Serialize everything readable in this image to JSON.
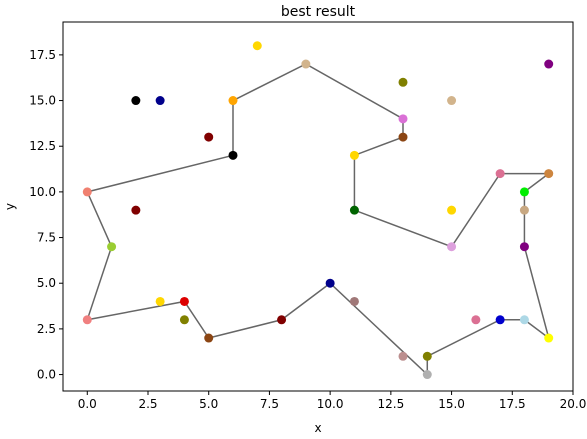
{
  "chart_data": {
    "type": "scatter",
    "title": "best result",
    "xlabel": "x",
    "ylabel": "y",
    "xlim": [
      -1,
      20
    ],
    "ylim": [
      -0.9,
      19.3
    ],
    "xticks": [
      0,
      2.5,
      5,
      7.5,
      10,
      12.5,
      15,
      17.5,
      20
    ],
    "xtick_labels": [
      "0.0",
      "2.5",
      "5.0",
      "7.5",
      "10.0",
      "12.5",
      "15.0",
      "17.5",
      "20.0"
    ],
    "yticks": [
      0,
      2.5,
      5,
      7.5,
      10,
      12.5,
      15,
      17.5
    ],
    "ytick_labels": [
      "0.0",
      "2.5",
      "5.0",
      "7.5",
      "10.0",
      "12.5",
      "15.0",
      "17.5"
    ],
    "grid": false,
    "path_color": "#666666",
    "route": [
      [
        0,
        10
      ],
      [
        6,
        12
      ],
      [
        6,
        15
      ],
      [
        9,
        17
      ],
      [
        13,
        14
      ],
      [
        13,
        13
      ],
      [
        11,
        12
      ],
      [
        11,
        9
      ],
      [
        15,
        7
      ],
      [
        17,
        11
      ],
      [
        19,
        11
      ],
      [
        18,
        10
      ],
      [
        18,
        7
      ],
      [
        19,
        2
      ],
      [
        18,
        3
      ],
      [
        17,
        3
      ],
      [
        14,
        1
      ],
      [
        14,
        0
      ],
      [
        10,
        5
      ],
      [
        8,
        3
      ],
      [
        5,
        2
      ],
      [
        4,
        4
      ],
      [
        0,
        3
      ],
      [
        1,
        7
      ],
      [
        0,
        10
      ]
    ],
    "points": [
      {
        "x": 0,
        "y": 10,
        "color": "#f08070"
      },
      {
        "x": 6,
        "y": 12,
        "color": "#000000"
      },
      {
        "x": 6,
        "y": 15,
        "color": "#ffa500"
      },
      {
        "x": 9,
        "y": 17,
        "color": "#d2b48c"
      },
      {
        "x": 13,
        "y": 14,
        "color": "#da70d6"
      },
      {
        "x": 13,
        "y": 13,
        "color": "#8b4513"
      },
      {
        "x": 11,
        "y": 12,
        "color": "#ffd700"
      },
      {
        "x": 11,
        "y": 9,
        "color": "#006400"
      },
      {
        "x": 15,
        "y": 7,
        "color": "#dda0dd"
      },
      {
        "x": 17,
        "y": 11,
        "color": "#db7093"
      },
      {
        "x": 19,
        "y": 11,
        "color": "#cd853f"
      },
      {
        "x": 18,
        "y": 10,
        "color": "#00ee00"
      },
      {
        "x": 18,
        "y": 7,
        "color": "#800080"
      },
      {
        "x": 19,
        "y": 2,
        "color": "#ffff00"
      },
      {
        "x": 18,
        "y": 3,
        "color": "#add8e6"
      },
      {
        "x": 17,
        "y": 3,
        "color": "#0000cd"
      },
      {
        "x": 14,
        "y": 1,
        "color": "#808000"
      },
      {
        "x": 14,
        "y": 0,
        "color": "#b0b0b0"
      },
      {
        "x": 10,
        "y": 5,
        "color": "#00008b"
      },
      {
        "x": 8,
        "y": 3,
        "color": "#800000"
      },
      {
        "x": 5,
        "y": 2,
        "color": "#8b4513"
      },
      {
        "x": 4,
        "y": 4,
        "color": "#dd0000"
      },
      {
        "x": 0,
        "y": 3,
        "color": "#f08080"
      },
      {
        "x": 1,
        "y": 7,
        "color": "#9acd32"
      },
      {
        "x": 2,
        "y": 15,
        "color": "#000000"
      },
      {
        "x": 3,
        "y": 15,
        "color": "#00008b"
      },
      {
        "x": 7,
        "y": 18,
        "color": "#ffd700"
      },
      {
        "x": 5,
        "y": 13,
        "color": "#800000"
      },
      {
        "x": 13,
        "y": 16,
        "color": "#808000"
      },
      {
        "x": 15,
        "y": 15,
        "color": "#d2b48c"
      },
      {
        "x": 19,
        "y": 17,
        "color": "#800080"
      },
      {
        "x": 2,
        "y": 9,
        "color": "#800000"
      },
      {
        "x": 15,
        "y": 9,
        "color": "#ffd700"
      },
      {
        "x": 18,
        "y": 9,
        "color": "#c8a882"
      },
      {
        "x": 3,
        "y": 4,
        "color": "#ffd700"
      },
      {
        "x": 4,
        "y": 3,
        "color": "#808000"
      },
      {
        "x": 11,
        "y": 4,
        "color": "#a07878"
      },
      {
        "x": 13,
        "y": 1,
        "color": "#bc8f8f"
      },
      {
        "x": 16,
        "y": 3,
        "color": "#db7093"
      }
    ]
  }
}
